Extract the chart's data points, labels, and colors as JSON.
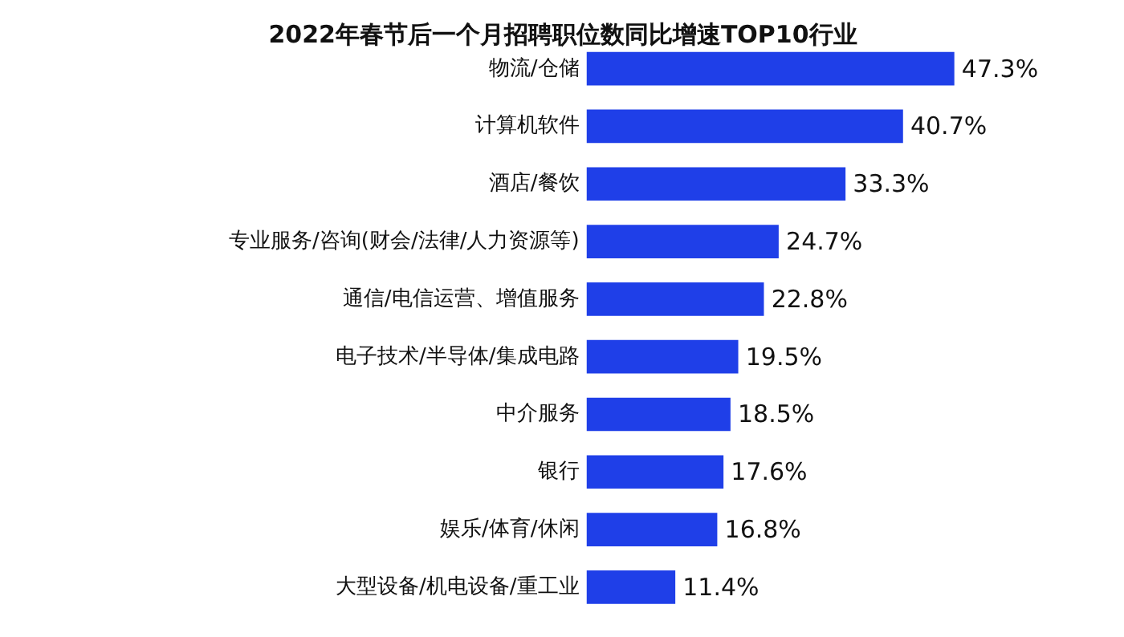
{
  "chart_data": {
    "type": "bar",
    "orientation": "horizontal",
    "title": "2022年春节后一个月招聘职位数同比增速TOP10行业",
    "categories": [
      "物流/仓储",
      "计算机软件",
      "酒店/餐饮",
      "专业服务/咨询(财会/法律/人力资源等)",
      "通信/电信运营、增值服务",
      "电子技术/半导体/集成电路",
      "中介服务",
      "银行",
      "娱乐/体育/休闲",
      "大型设备/机电设备/重工业"
    ],
    "values": [
      47.3,
      40.7,
      33.3,
      24.7,
      22.8,
      19.5,
      18.5,
      17.6,
      16.8,
      11.4
    ],
    "value_labels": [
      "47.3%",
      "40.7%",
      "33.3%",
      "24.7%",
      "22.8%",
      "19.5%",
      "18.5%",
      "17.6%",
      "16.8%",
      "11.4%"
    ],
    "color": "#1f3fe8"
  }
}
